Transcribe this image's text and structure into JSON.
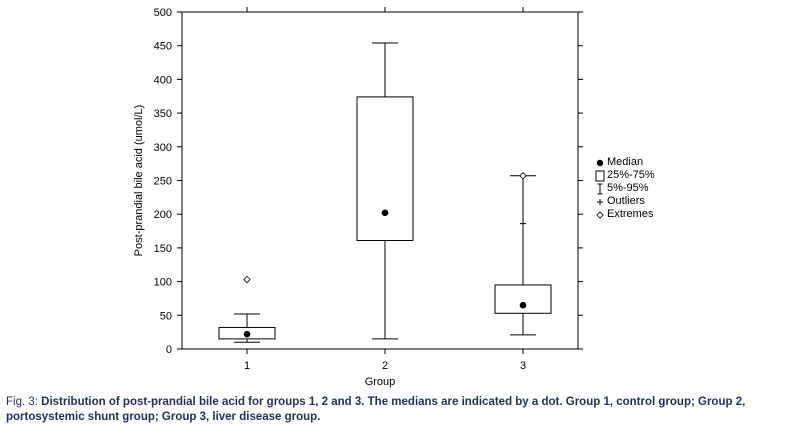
{
  "chart_data": {
    "type": "box",
    "xlabel": "Group",
    "ylabel": "Post-prandial bile acid (umol/L)",
    "categories": [
      "1",
      "2",
      "3"
    ],
    "ylim": [
      0,
      500
    ],
    "yticks": [
      0,
      50,
      100,
      150,
      200,
      250,
      300,
      350,
      400,
      450,
      500
    ],
    "boxes": [
      {
        "category": "1",
        "median": 22,
        "q1": 15,
        "q3": 32,
        "p5": 10,
        "p95": 52,
        "outliers": [],
        "extremes": [
          103
        ]
      },
      {
        "category": "2",
        "median": 202,
        "q1": 161,
        "q3": 374,
        "p5": 15,
        "p95": 454,
        "outliers": [],
        "extremes": []
      },
      {
        "category": "3",
        "median": 65,
        "q1": 53,
        "q3": 95,
        "p5": 21,
        "p95": 257,
        "outliers": [
          186
        ],
        "extremes": [
          257
        ]
      }
    ],
    "legend": [
      {
        "symbol": "dot",
        "label": "Median"
      },
      {
        "symbol": "box",
        "label": "25%-75%"
      },
      {
        "symbol": "whisker",
        "label": "5%-95%"
      },
      {
        "symbol": "plus",
        "label": "Outliers"
      },
      {
        "symbol": "diamond",
        "label": "Extremes"
      }
    ],
    "legend_position": "right",
    "grid": false
  },
  "caption": {
    "prefix": "Fig. 3: ",
    "text": "Distribution of post-prandial bile acid for groups 1, 2 and 3. The medians are indicated by a dot. Group 1, control group; Group 2, portosystemic shunt group; Group 3, liver disease group."
  },
  "colors": {
    "caption": "#1f2f56",
    "ink": "#000000"
  }
}
